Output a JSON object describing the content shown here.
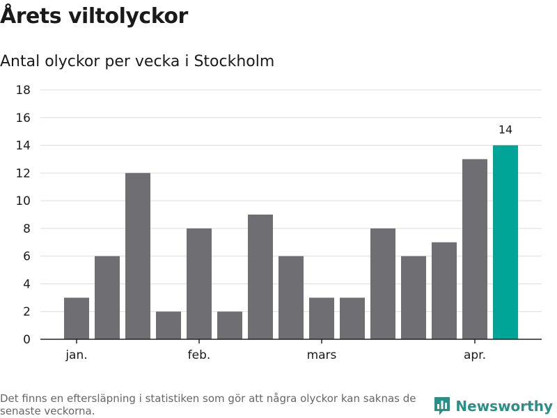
{
  "title": "Årets viltolyckor",
  "subtitle": "Antal olyckor per vecka i Stockholm",
  "footnote": "Det finns en eftersläpning i statistiken som gör att några olyckor kan saknas de senaste veckorna.",
  "brand": {
    "name": "Newsworthy",
    "icon": "bar-chart-icon"
  },
  "colors": {
    "bar": "#6f6e73",
    "highlight": "#00a598",
    "grid": "#dcdcdc",
    "axis": "#222222",
    "brand": "#2a8f86"
  },
  "chart_data": {
    "type": "bar",
    "values": [
      3,
      6,
      12,
      2,
      8,
      2,
      9,
      6,
      3,
      3,
      8,
      6,
      7,
      13,
      14
    ],
    "highlight_index": 14,
    "highlight_label": "14",
    "ylim": [
      0,
      18
    ],
    "yticks": [
      0,
      2,
      4,
      6,
      8,
      10,
      12,
      14,
      16,
      18
    ],
    "x_tick_labels": [
      {
        "label": "jan.",
        "bar_index": 0
      },
      {
        "label": "feb.",
        "bar_index": 4
      },
      {
        "label": "mars",
        "bar_index": 8
      },
      {
        "label": "apr.",
        "bar_index": 13
      }
    ],
    "grid": true,
    "xlabel": "",
    "ylabel": ""
  }
}
